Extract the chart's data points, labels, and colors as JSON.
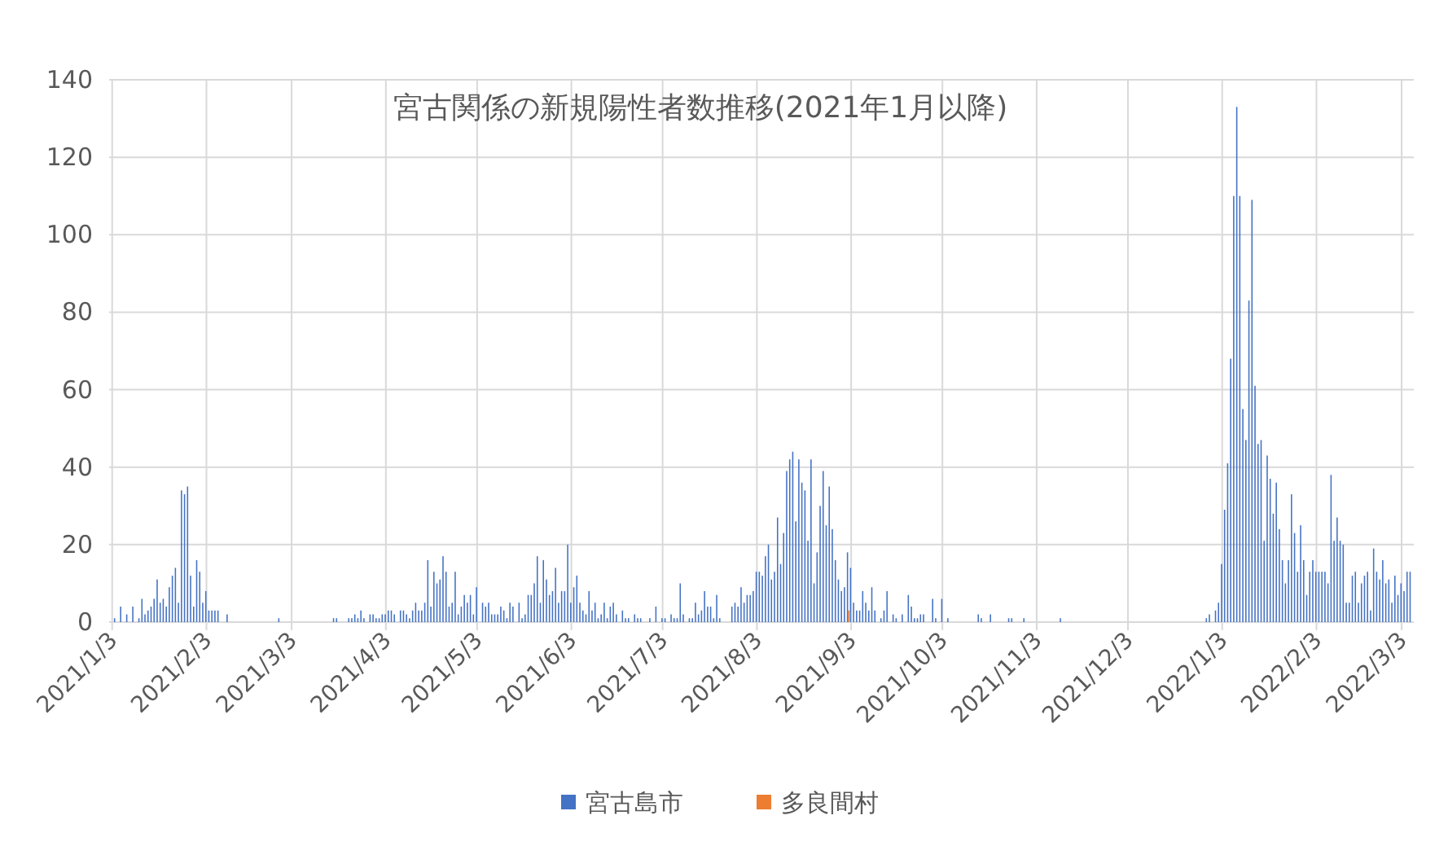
{
  "chart_data": {
    "type": "bar",
    "title": "宮古関係の新規陽性者数推移(2021年1月以降)",
    "xlim": [
      "2021-01-02",
      "2022-03-07"
    ],
    "ylim": [
      0,
      140
    ],
    "yticks": [
      0,
      20,
      40,
      60,
      80,
      100,
      120,
      140
    ],
    "xticks": [
      {
        "value": "2021-01-03",
        "label": "2021/1/3"
      },
      {
        "value": "2021-02-03",
        "label": "2021/2/3"
      },
      {
        "value": "2021-03-03",
        "label": "2021/3/3"
      },
      {
        "value": "2021-04-03",
        "label": "2021/4/3"
      },
      {
        "value": "2021-05-03",
        "label": "2021/5/3"
      },
      {
        "value": "2021-06-03",
        "label": "2021/6/3"
      },
      {
        "value": "2021-07-03",
        "label": "2021/7/3"
      },
      {
        "value": "2021-08-03",
        "label": "2021/8/3"
      },
      {
        "value": "2021-09-03",
        "label": "2021/9/3"
      },
      {
        "value": "2021-10-03",
        "label": "2021/10/3"
      },
      {
        "value": "2021-11-03",
        "label": "2021/11/3"
      },
      {
        "value": "2021-12-03",
        "label": "2021/12/3"
      },
      {
        "value": "2022-01-03",
        "label": "2022/1/3"
      },
      {
        "value": "2022-02-03",
        "label": "2022/2/3"
      },
      {
        "value": "2022-03-03",
        "label": "2022/3/3"
      }
    ],
    "grid": true,
    "legend": "bottom",
    "series": [
      {
        "name": "宮古島市",
        "color": "#4472c4",
        "x": [
          "2021-01-04",
          "2021-01-06",
          "2021-01-08",
          "2021-01-10",
          "2021-01-12",
          "2021-01-13",
          "2021-01-14",
          "2021-01-15",
          "2021-01-16",
          "2021-01-17",
          "2021-01-18",
          "2021-01-19",
          "2021-01-20",
          "2021-01-21",
          "2021-01-22",
          "2021-01-23",
          "2021-01-24",
          "2021-01-25",
          "2021-01-26",
          "2021-01-27",
          "2021-01-28",
          "2021-01-29",
          "2021-01-30",
          "2021-01-31",
          "2021-02-01",
          "2021-02-02",
          "2021-02-03",
          "2021-02-04",
          "2021-02-05",
          "2021-02-06",
          "2021-02-07",
          "2021-02-10",
          "2021-02-27",
          "2021-03-17",
          "2021-03-18",
          "2021-03-22",
          "2021-03-23",
          "2021-03-24",
          "2021-03-25",
          "2021-03-26",
          "2021-03-27",
          "2021-03-29",
          "2021-03-30",
          "2021-03-31",
          "2021-04-01",
          "2021-04-02",
          "2021-04-03",
          "2021-04-04",
          "2021-04-05",
          "2021-04-06",
          "2021-04-08",
          "2021-04-09",
          "2021-04-10",
          "2021-04-11",
          "2021-04-12",
          "2021-04-13",
          "2021-04-14",
          "2021-04-15",
          "2021-04-16",
          "2021-04-17",
          "2021-04-18",
          "2021-04-19",
          "2021-04-20",
          "2021-04-21",
          "2021-04-22",
          "2021-04-23",
          "2021-04-24",
          "2021-04-25",
          "2021-04-26",
          "2021-04-27",
          "2021-04-28",
          "2021-04-29",
          "2021-04-30",
          "2021-05-01",
          "2021-05-02",
          "2021-05-03",
          "2021-05-05",
          "2021-05-06",
          "2021-05-07",
          "2021-05-08",
          "2021-05-09",
          "2021-05-10",
          "2021-05-11",
          "2021-05-12",
          "2021-05-13",
          "2021-05-14",
          "2021-05-15",
          "2021-05-17",
          "2021-05-18",
          "2021-05-19",
          "2021-05-20",
          "2021-05-21",
          "2021-05-22",
          "2021-05-23",
          "2021-05-24",
          "2021-05-25",
          "2021-05-26",
          "2021-05-27",
          "2021-05-28",
          "2021-05-29",
          "2021-05-30",
          "2021-05-31",
          "2021-06-01",
          "2021-06-02",
          "2021-06-03",
          "2021-06-04",
          "2021-06-05",
          "2021-06-06",
          "2021-06-07",
          "2021-06-08",
          "2021-06-09",
          "2021-06-10",
          "2021-06-11",
          "2021-06-12",
          "2021-06-13",
          "2021-06-14",
          "2021-06-15",
          "2021-06-16",
          "2021-06-17",
          "2021-06-18",
          "2021-06-20",
          "2021-06-21",
          "2021-06-22",
          "2021-06-24",
          "2021-06-25",
          "2021-06-26",
          "2021-06-29",
          "2021-07-01",
          "2021-07-03",
          "2021-07-04",
          "2021-07-06",
          "2021-07-07",
          "2021-07-08",
          "2021-07-09",
          "2021-07-10",
          "2021-07-12",
          "2021-07-13",
          "2021-07-14",
          "2021-07-15",
          "2021-07-16",
          "2021-07-17",
          "2021-07-18",
          "2021-07-19",
          "2021-07-20",
          "2021-07-21",
          "2021-07-22",
          "2021-07-26",
          "2021-07-27",
          "2021-07-28",
          "2021-07-29",
          "2021-07-30",
          "2021-07-31",
          "2021-08-01",
          "2021-08-02",
          "2021-08-03",
          "2021-08-04",
          "2021-08-05",
          "2021-08-06",
          "2021-08-07",
          "2021-08-08",
          "2021-08-09",
          "2021-08-10",
          "2021-08-11",
          "2021-08-12",
          "2021-08-13",
          "2021-08-14",
          "2021-08-15",
          "2021-08-16",
          "2021-08-17",
          "2021-08-18",
          "2021-08-19",
          "2021-08-20",
          "2021-08-21",
          "2021-08-22",
          "2021-08-23",
          "2021-08-24",
          "2021-08-25",
          "2021-08-26",
          "2021-08-27",
          "2021-08-28",
          "2021-08-29",
          "2021-08-30",
          "2021-08-31",
          "2021-09-01",
          "2021-09-02",
          "2021-09-03",
          "2021-09-04",
          "2021-09-05",
          "2021-09-06",
          "2021-09-07",
          "2021-09-08",
          "2021-09-09",
          "2021-09-10",
          "2021-09-11",
          "2021-09-13",
          "2021-09-14",
          "2021-09-15",
          "2021-09-17",
          "2021-09-18",
          "2021-09-20",
          "2021-09-22",
          "2021-09-23",
          "2021-09-24",
          "2021-09-25",
          "2021-09-26",
          "2021-09-27",
          "2021-09-30",
          "2021-10-01",
          "2021-10-03",
          "2021-10-05",
          "2021-10-15",
          "2021-10-16",
          "2021-10-19",
          "2021-10-25",
          "2021-10-26",
          "2021-10-30",
          "2021-11-11",
          "2021-12-29",
          "2021-12-30",
          "2022-01-01",
          "2022-01-02",
          "2022-01-03",
          "2022-01-04",
          "2022-01-05",
          "2022-01-06",
          "2022-01-07",
          "2022-01-08",
          "2022-01-09",
          "2022-01-10",
          "2022-01-11",
          "2022-01-12",
          "2022-01-13",
          "2022-01-14",
          "2022-01-15",
          "2022-01-16",
          "2022-01-17",
          "2022-01-18",
          "2022-01-19",
          "2022-01-20",
          "2022-01-21",
          "2022-01-22",
          "2022-01-23",
          "2022-01-24",
          "2022-01-25",
          "2022-01-26",
          "2022-01-27",
          "2022-01-28",
          "2022-01-29",
          "2022-01-30",
          "2022-01-31",
          "2022-02-01",
          "2022-02-02",
          "2022-02-03",
          "2022-02-04",
          "2022-02-05",
          "2022-02-06",
          "2022-02-07",
          "2022-02-08",
          "2022-02-09",
          "2022-02-10",
          "2022-02-11",
          "2022-02-12",
          "2022-02-13",
          "2022-02-14",
          "2022-02-15",
          "2022-02-16",
          "2022-02-17",
          "2022-02-18",
          "2022-02-19",
          "2022-02-20",
          "2022-02-21",
          "2022-02-22",
          "2022-02-23",
          "2022-02-24",
          "2022-02-25",
          "2022-02-26",
          "2022-02-27",
          "2022-02-28",
          "2022-03-01",
          "2022-03-02",
          "2022-03-03",
          "2022-03-04",
          "2022-03-05",
          "2022-03-06"
        ],
        "values": [
          1,
          4,
          2,
          4,
          1,
          6,
          2,
          3,
          4,
          6,
          11,
          5,
          6,
          4,
          9,
          12,
          14,
          5,
          34,
          33,
          35,
          12,
          4,
          16,
          13,
          5,
          8,
          3,
          3,
          3,
          3,
          2,
          1,
          1,
          1,
          1,
          1,
          2,
          1,
          3,
          1,
          2,
          2,
          1,
          1,
          2,
          2,
          3,
          3,
          2,
          3,
          3,
          2,
          1,
          3,
          5,
          3,
          3,
          5,
          16,
          4,
          13,
          10,
          11,
          17,
          13,
          4,
          5,
          13,
          2,
          4,
          7,
          5,
          7,
          2,
          9,
          5,
          4,
          5,
          2,
          2,
          2,
          4,
          3,
          1,
          5,
          4,
          5,
          1,
          2,
          7,
          7,
          10,
          17,
          5,
          16,
          11,
          7,
          8,
          14,
          5,
          8,
          8,
          20,
          5,
          9,
          12,
          5,
          3,
          2,
          8,
          3,
          5,
          1,
          2,
          5,
          1,
          4,
          5,
          2,
          3,
          1,
          1,
          2,
          1,
          1,
          1,
          4,
          1,
          1,
          2,
          1,
          1,
          10,
          2,
          1,
          1,
          5,
          2,
          3,
          8,
          4,
          4,
          1,
          7,
          1,
          4,
          5,
          4,
          9,
          5,
          7,
          7,
          8,
          13,
          13,
          12,
          17,
          20,
          11,
          13,
          27,
          15,
          23,
          39,
          42,
          44,
          26,
          42,
          36,
          34,
          21,
          42,
          10,
          18,
          30,
          39,
          25,
          35,
          24,
          16,
          11,
          8,
          9,
          18,
          14,
          5,
          3,
          3,
          8,
          5,
          3,
          9,
          3,
          1,
          3,
          8,
          2,
          1,
          2,
          7,
          4,
          1,
          1,
          2,
          2,
          6,
          1,
          6,
          1,
          2,
          1,
          2,
          1,
          1,
          1,
          1,
          1,
          2,
          3,
          5,
          15,
          29,
          41,
          68,
          110,
          133,
          110,
          55,
          47,
          83,
          109,
          61,
          46,
          47,
          21,
          43,
          37,
          28,
          36,
          24,
          16,
          10,
          16,
          33,
          23,
          13,
          25,
          16,
          7,
          13,
          16,
          13,
          13,
          13,
          13,
          10,
          38,
          21,
          27,
          21,
          20,
          5,
          5,
          12,
          13,
          5,
          10,
          12,
          13,
          3,
          19,
          13,
          11,
          16,
          10,
          11,
          5,
          12,
          7,
          10,
          8,
          13,
          13
        ]
      },
      {
        "name": "多良間村",
        "color": "#ed7d31",
        "x": [
          "2021-09-02"
        ],
        "values": [
          3
        ]
      }
    ]
  }
}
